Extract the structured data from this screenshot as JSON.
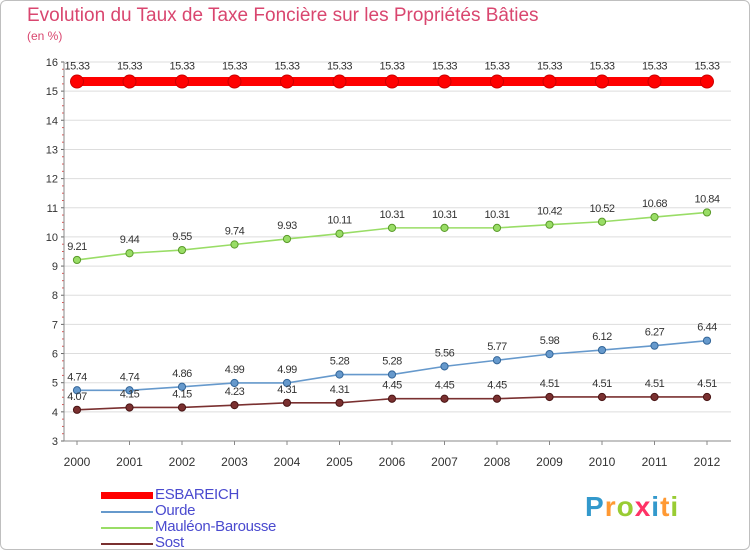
{
  "chart_data": {
    "type": "line",
    "title": "Evolution du Taux de Taxe Foncière sur les Propriétés Bâties",
    "ylabel": "(en %)",
    "xlabel": "",
    "ylim": [
      3,
      16
    ],
    "yticks": [
      "3",
      "4",
      "5",
      "6",
      "7",
      "8",
      "9",
      "10",
      "11",
      "12",
      "13",
      "14",
      "15",
      "16"
    ],
    "categories": [
      "2000",
      "2001",
      "2002",
      "2003",
      "2004",
      "2005",
      "2006",
      "2007",
      "2008",
      "2009",
      "2010",
      "2011",
      "2012"
    ],
    "series": [
      {
        "name": "ESBAREICH",
        "color": "#ff0000",
        "values": [
          15.33,
          15.33,
          15.33,
          15.33,
          15.33,
          15.33,
          15.33,
          15.33,
          15.33,
          15.33,
          15.33,
          15.33,
          15.33
        ],
        "labels": [
          "15.33",
          "15.33",
          "15.33",
          "15.33",
          "15.33",
          "15.33",
          "15.33",
          "15.33",
          "15.33",
          "15.33",
          "15.33",
          "15.33",
          "15.33"
        ]
      },
      {
        "name": "Ourde",
        "color": "#6699cc",
        "values": [
          4.74,
          4.74,
          4.86,
          4.99,
          4.99,
          5.28,
          5.28,
          5.56,
          5.77,
          5.98,
          6.12,
          6.27,
          6.44
        ],
        "labels": [
          "4.74",
          "4.74",
          "4.86",
          "4.99",
          "4.99",
          "5.28",
          "5.28",
          "5.56",
          "5.77",
          "5.98",
          "6.12",
          "6.27",
          "6.44"
        ]
      },
      {
        "name": "Mauléon-Barousse",
        "color": "#99dd66",
        "values": [
          9.21,
          9.44,
          9.55,
          9.74,
          9.93,
          10.11,
          10.31,
          10.31,
          10.31,
          10.42,
          10.52,
          10.68,
          10.84
        ],
        "labels": [
          "9.21",
          "9.44",
          "9.55",
          "9.74",
          "9.93",
          "10.11",
          "10.31",
          "10.31",
          "10.31",
          "10.42",
          "10.52",
          "10.68",
          "10.84"
        ]
      },
      {
        "name": "Sost",
        "color": "#7a3030",
        "values": [
          4.07,
          4.15,
          4.15,
          4.23,
          4.31,
          4.31,
          4.45,
          4.45,
          4.45,
          4.51,
          4.51,
          4.51,
          4.51
        ],
        "labels": [
          "4.07",
          "4.15",
          "4.15",
          "4.23",
          "4.31",
          "4.31",
          "4.45",
          "4.45",
          "4.45",
          "4.51",
          "4.51",
          "4.51",
          "4.51"
        ]
      }
    ]
  },
  "logo": {
    "text": "Proxiti",
    "letter_colors": [
      "#3399cc",
      "#ff9933",
      "#99cc33",
      "#ff3366",
      "#3399cc",
      "#ff9933",
      "#99cc33"
    ]
  }
}
